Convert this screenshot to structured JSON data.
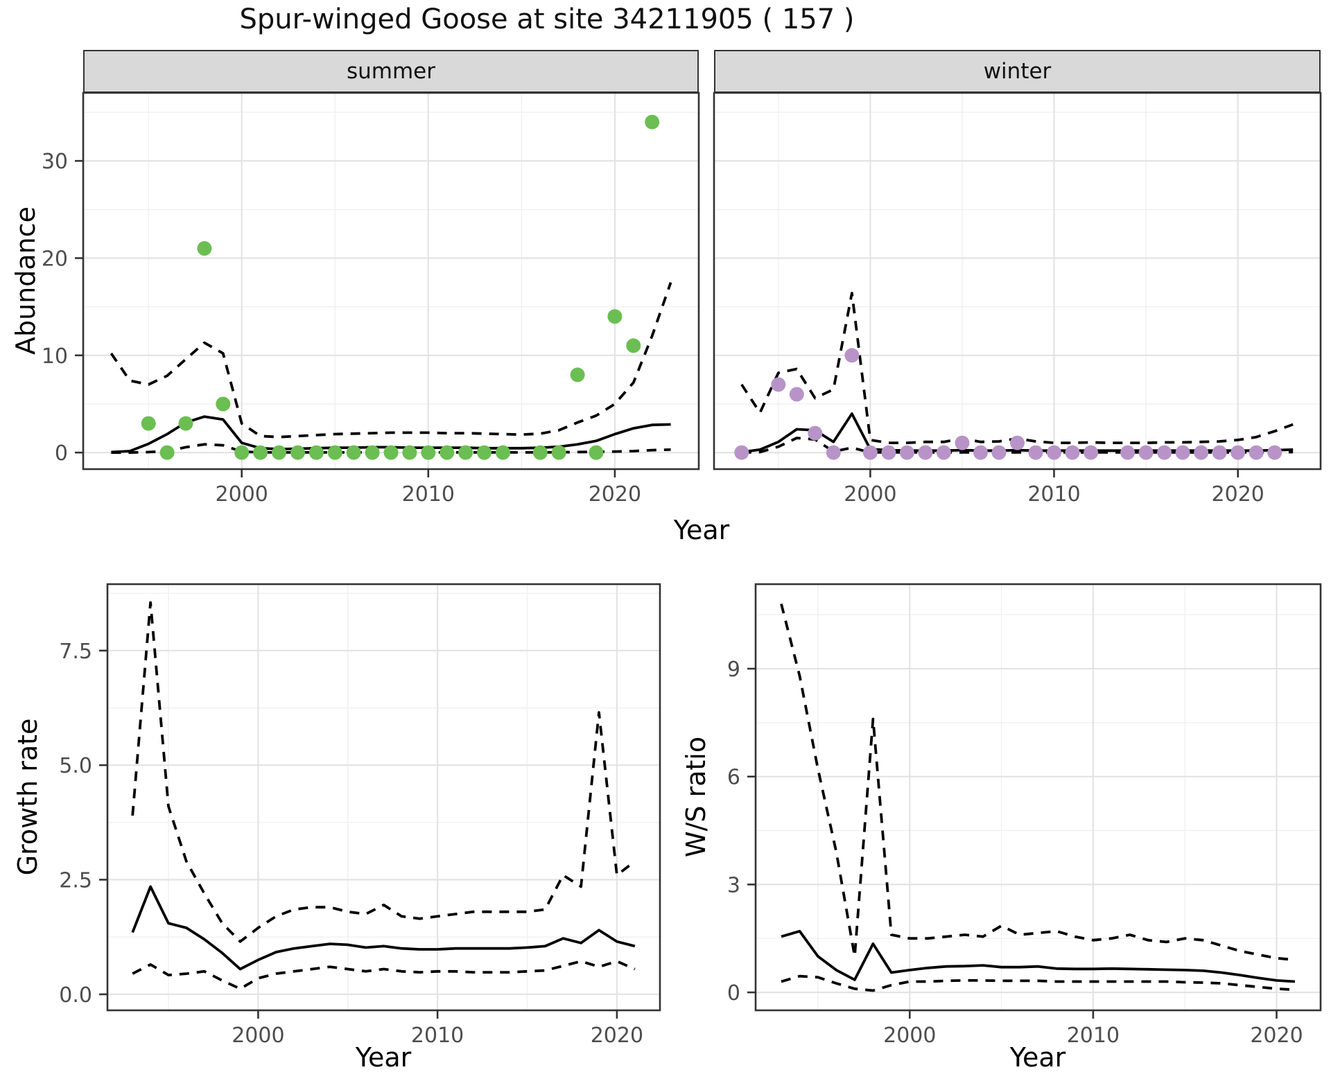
{
  "title": "Spur-winged Goose at site 34211905 ( 157 )",
  "axis": {
    "x_label": "Year"
  },
  "colors": {
    "summer_point": "#6bbe51",
    "winter_point": "#b893c8",
    "line": "#000000",
    "strip_bg": "#d9d9d9",
    "panel_border": "#333333",
    "grid_major": "#e3e3e3",
    "grid_minor": "#f0f0f0",
    "tick_text": "#4d4d4d",
    "tick_mark": "#333333"
  },
  "chart_data": [
    {
      "id": "summer",
      "type": "line",
      "facet_label": "summer",
      "xlabel": "Year",
      "ylabel": "Abundance",
      "xlim": [
        1991.5,
        2024.5
      ],
      "ylim": [
        -1.7,
        37
      ],
      "xticks": [
        2000,
        2010,
        2020
      ],
      "yticks": [
        0,
        10,
        20,
        30
      ],
      "ytick_labels": [
        "0",
        "10",
        "20",
        "30"
      ],
      "x_minor": [
        1995,
        2005,
        2015
      ],
      "y_minor": [
        5,
        15,
        25,
        35
      ],
      "show_y_labels": true,
      "grid": true,
      "series": [
        {
          "name": "median",
          "style": "solid",
          "x": [
            1993,
            1994,
            1995,
            1996,
            1997,
            1998,
            1999,
            2000,
            2001,
            2002,
            2003,
            2004,
            2005,
            2006,
            2007,
            2008,
            2009,
            2010,
            2011,
            2012,
            2013,
            2014,
            2015,
            2016,
            2017,
            2018,
            2019,
            2020,
            2021,
            2022,
            2023
          ],
          "y": [
            0.05,
            0.15,
            0.9,
            1.9,
            3.1,
            3.7,
            3.4,
            1.0,
            0.45,
            0.35,
            0.4,
            0.45,
            0.5,
            0.5,
            0.55,
            0.55,
            0.5,
            0.5,
            0.5,
            0.5,
            0.45,
            0.45,
            0.45,
            0.5,
            0.6,
            0.85,
            1.2,
            1.9,
            2.5,
            2.85,
            2.9
          ]
        },
        {
          "name": "lower_ci",
          "style": "dashed",
          "x": [
            1993,
            1994,
            1995,
            1996,
            1997,
            1998,
            1999,
            2000,
            2001,
            2002,
            2003,
            2004,
            2005,
            2006,
            2007,
            2008,
            2009,
            2010,
            2011,
            2012,
            2013,
            2014,
            2015,
            2016,
            2017,
            2018,
            2019,
            2020,
            2021,
            2022,
            2023
          ],
          "y": [
            0,
            0,
            0.05,
            0.15,
            0.55,
            0.85,
            0.75,
            0.1,
            0.02,
            0.02,
            0.02,
            0.02,
            0.02,
            0.02,
            0.02,
            0.02,
            0.02,
            0.02,
            0.02,
            0.02,
            0.02,
            0.02,
            0.02,
            0.02,
            0.03,
            0.05,
            0.08,
            0.1,
            0.15,
            0.25,
            0.3
          ]
        },
        {
          "name": "upper_ci",
          "style": "dashed",
          "x": [
            1993,
            1994,
            1995,
            1996,
            1997,
            1998,
            1999,
            2000,
            2001,
            2002,
            2003,
            2004,
            2005,
            2006,
            2007,
            2008,
            2009,
            2010,
            2011,
            2012,
            2013,
            2014,
            2015,
            2016,
            2017,
            2018,
            2019,
            2020,
            2021,
            2022,
            2023
          ],
          "y": [
            10.2,
            7.4,
            7.0,
            7.9,
            9.6,
            11.3,
            10.2,
            3.0,
            1.7,
            1.6,
            1.7,
            1.8,
            1.9,
            1.95,
            2.0,
            2.05,
            2.05,
            2.05,
            2.0,
            2.0,
            1.95,
            1.9,
            1.85,
            1.95,
            2.3,
            3.1,
            3.8,
            5.0,
            7.2,
            12.0,
            17.5
          ]
        }
      ],
      "points": {
        "name": "observed_abundance",
        "color_key": "summer_point",
        "x": [
          1995,
          1996,
          1997,
          1998,
          1999,
          2000,
          2001,
          2002,
          2003,
          2004,
          2005,
          2006,
          2007,
          2008,
          2009,
          2010,
          2011,
          2012,
          2013,
          2014,
          2016,
          2017,
          2018,
          2019,
          2020,
          2021,
          2022
        ],
        "y": [
          3,
          0,
          3,
          21,
          5,
          0,
          0,
          0,
          0,
          0,
          0,
          0,
          0,
          0,
          0,
          0,
          0,
          0,
          0,
          0,
          0,
          0,
          8,
          0,
          14,
          11,
          34
        ]
      }
    },
    {
      "id": "winter",
      "type": "line",
      "facet_label": "winter",
      "xlabel": "Year",
      "ylabel": "Abundance",
      "xlim": [
        1991.5,
        2024.5
      ],
      "ylim": [
        -1.7,
        37
      ],
      "xticks": [
        2000,
        2010,
        2020
      ],
      "yticks": [
        0,
        10,
        20,
        30
      ],
      "ytick_labels": [
        "0",
        "10",
        "20",
        "30"
      ],
      "x_minor": [
        1995,
        2005,
        2015
      ],
      "y_minor": [
        5,
        15,
        25,
        35
      ],
      "show_y_labels": false,
      "grid": true,
      "series": [
        {
          "name": "median",
          "style": "solid",
          "x": [
            1993,
            1994,
            1995,
            1996,
            1997,
            1998,
            1999,
            2000,
            2001,
            2002,
            2003,
            2004,
            2005,
            2006,
            2007,
            2008,
            2009,
            2010,
            2011,
            2012,
            2013,
            2014,
            2015,
            2016,
            2017,
            2018,
            2019,
            2020,
            2021,
            2022,
            2023
          ],
          "y": [
            0.05,
            0.3,
            1.1,
            2.4,
            2.3,
            1.1,
            4.0,
            0.35,
            0.25,
            0.2,
            0.2,
            0.2,
            0.25,
            0.2,
            0.2,
            0.25,
            0.2,
            0.2,
            0.2,
            0.2,
            0.2,
            0.2,
            0.2,
            0.2,
            0.2,
            0.2,
            0.2,
            0.2,
            0.2,
            0.25,
            0.3
          ]
        },
        {
          "name": "lower_ci",
          "style": "dashed",
          "x": [
            1993,
            1994,
            1995,
            1996,
            1997,
            1998,
            1999,
            2000,
            2001,
            2002,
            2003,
            2004,
            2005,
            2006,
            2007,
            2008,
            2009,
            2010,
            2011,
            2012,
            2013,
            2014,
            2015,
            2016,
            2017,
            2018,
            2019,
            2020,
            2021,
            2022,
            2023
          ],
          "y": [
            0,
            0.05,
            0.6,
            1.5,
            1.35,
            0.1,
            0.5,
            0.02,
            0.02,
            0.02,
            0.02,
            0.02,
            0.02,
            0.02,
            0.02,
            0.02,
            0.02,
            0.02,
            0.02,
            0.02,
            0.02,
            0.02,
            0.02,
            0.02,
            0.02,
            0.02,
            0.02,
            0.02,
            0.02,
            0.03,
            0.05
          ]
        },
        {
          "name": "upper_ci",
          "style": "dashed",
          "x": [
            1993,
            1994,
            1995,
            1996,
            1997,
            1998,
            1999,
            2000,
            2001,
            2002,
            2003,
            2004,
            2005,
            2006,
            2007,
            2008,
            2009,
            2010,
            2011,
            2012,
            2013,
            2014,
            2015,
            2016,
            2017,
            2018,
            2019,
            2020,
            2021,
            2022,
            2023
          ],
          "y": [
            7.0,
            4.1,
            8.2,
            8.6,
            5.6,
            6.5,
            16.4,
            1.3,
            1.0,
            1.0,
            1.1,
            1.1,
            1.45,
            1.1,
            1.15,
            1.45,
            1.15,
            1.0,
            1.0,
            1.05,
            1.0,
            1.0,
            1.0,
            1.05,
            1.05,
            1.1,
            1.15,
            1.3,
            1.6,
            2.2,
            2.9
          ]
        }
      ],
      "points": {
        "name": "observed_abundance",
        "color_key": "winter_point",
        "x": [
          1993,
          1995,
          1996,
          1997,
          1998,
          1999,
          2000,
          2001,
          2002,
          2003,
          2004,
          2005,
          2006,
          2007,
          2008,
          2009,
          2010,
          2011,
          2012,
          2014,
          2015,
          2016,
          2017,
          2018,
          2019,
          2020,
          2021,
          2022
        ],
        "y": [
          0,
          7,
          6,
          2,
          0,
          10,
          0,
          0,
          0,
          0,
          0,
          1,
          0,
          0,
          1,
          0,
          0,
          0,
          0,
          0,
          0,
          0,
          0,
          0,
          0,
          0,
          0,
          0
        ]
      }
    },
    {
      "id": "growth_rate",
      "type": "line",
      "facet_label": "",
      "xlabel": "Year",
      "ylabel": "Growth rate",
      "xlim": [
        1991.6,
        2022.4
      ],
      "ylim": [
        -0.35,
        8.95
      ],
      "xticks": [
        2000,
        2010,
        2020
      ],
      "yticks": [
        0,
        2.5,
        5,
        7.5
      ],
      "ytick_labels": [
        "0.0",
        "2.5",
        "5.0",
        "7.5"
      ],
      "x_minor": [
        1995,
        2005,
        2015
      ],
      "y_minor": [
        1.25,
        3.75,
        6.25,
        8.75
      ],
      "show_y_labels": true,
      "grid": true,
      "series": [
        {
          "name": "median",
          "style": "solid",
          "x": [
            1993,
            1994,
            1995,
            1996,
            1997,
            1998,
            1999,
            2000,
            2001,
            2002,
            2003,
            2004,
            2005,
            2006,
            2007,
            2008,
            2009,
            2010,
            2011,
            2012,
            2013,
            2014,
            2015,
            2016,
            2017,
            2018,
            2019,
            2020,
            2021
          ],
          "y": [
            1.35,
            2.35,
            1.55,
            1.45,
            1.2,
            0.9,
            0.55,
            0.75,
            0.92,
            1.0,
            1.05,
            1.1,
            1.08,
            1.02,
            1.05,
            1.0,
            0.98,
            0.98,
            1.0,
            1.0,
            1.0,
            1.0,
            1.02,
            1.05,
            1.22,
            1.12,
            1.4,
            1.15,
            1.05
          ]
        },
        {
          "name": "lower_ci",
          "style": "dashed",
          "x": [
            1993,
            1994,
            1995,
            1996,
            1997,
            1998,
            1999,
            2000,
            2001,
            2002,
            2003,
            2004,
            2005,
            2006,
            2007,
            2008,
            2009,
            2010,
            2011,
            2012,
            2013,
            2014,
            2015,
            2016,
            2017,
            2018,
            2019,
            2020,
            2021
          ],
          "y": [
            0.45,
            0.65,
            0.42,
            0.45,
            0.5,
            0.3,
            0.12,
            0.35,
            0.45,
            0.5,
            0.55,
            0.6,
            0.55,
            0.5,
            0.55,
            0.5,
            0.48,
            0.5,
            0.5,
            0.48,
            0.48,
            0.48,
            0.5,
            0.52,
            0.62,
            0.72,
            0.6,
            0.72,
            0.55
          ]
        },
        {
          "name": "upper_ci",
          "style": "dashed",
          "x": [
            1993,
            1994,
            1995,
            1996,
            1997,
            1998,
            1999,
            2000,
            2001,
            2002,
            2003,
            2004,
            2005,
            2006,
            2007,
            2008,
            2009,
            2010,
            2011,
            2012,
            2013,
            2014,
            2015,
            2016,
            2017,
            2018,
            2019,
            2020,
            2021
          ],
          "y": [
            3.9,
            8.55,
            4.1,
            2.9,
            2.2,
            1.55,
            1.15,
            1.45,
            1.7,
            1.85,
            1.9,
            1.9,
            1.8,
            1.75,
            1.95,
            1.7,
            1.65,
            1.7,
            1.75,
            1.8,
            1.8,
            1.8,
            1.8,
            1.85,
            2.6,
            2.35,
            6.15,
            2.6,
            2.9
          ]
        }
      ],
      "points": null
    },
    {
      "id": "ws_ratio",
      "type": "line",
      "facet_label": "",
      "xlabel": "Year",
      "ylabel": "W/S ratio",
      "xlim": [
        1991.6,
        2022.4
      ],
      "ylim": [
        -0.5,
        11.35
      ],
      "xticks": [
        2000,
        2010,
        2020
      ],
      "yticks": [
        0,
        3,
        6,
        9
      ],
      "ytick_labels": [
        "0",
        "3",
        "6",
        "9"
      ],
      "x_minor": [
        1995,
        2005,
        2015
      ],
      "y_minor": [
        1.5,
        4.5,
        7.5,
        10.5
      ],
      "show_y_labels": true,
      "grid": true,
      "series": [
        {
          "name": "median",
          "style": "solid",
          "x": [
            1993,
            1994,
            1995,
            1996,
            1997,
            1998,
            1999,
            2000,
            2001,
            2002,
            2003,
            2004,
            2005,
            2006,
            2007,
            2008,
            2009,
            2010,
            2011,
            2012,
            2013,
            2014,
            2015,
            2016,
            2017,
            2018,
            2019,
            2020,
            2021
          ],
          "y": [
            1.55,
            1.7,
            1.0,
            0.62,
            0.35,
            1.35,
            0.55,
            0.62,
            0.68,
            0.72,
            0.73,
            0.75,
            0.7,
            0.7,
            0.72,
            0.66,
            0.65,
            0.65,
            0.66,
            0.65,
            0.64,
            0.63,
            0.62,
            0.6,
            0.55,
            0.48,
            0.4,
            0.33,
            0.3
          ]
        },
        {
          "name": "lower_ci",
          "style": "dashed",
          "x": [
            1993,
            1994,
            1995,
            1996,
            1997,
            1998,
            1999,
            2000,
            2001,
            2002,
            2003,
            2004,
            2005,
            2006,
            2007,
            2008,
            2009,
            2010,
            2011,
            2012,
            2013,
            2014,
            2015,
            2016,
            2017,
            2018,
            2019,
            2020,
            2021
          ],
          "y": [
            0.3,
            0.45,
            0.42,
            0.25,
            0.1,
            0.05,
            0.2,
            0.3,
            0.3,
            0.32,
            0.33,
            0.33,
            0.32,
            0.32,
            0.32,
            0.3,
            0.3,
            0.3,
            0.3,
            0.3,
            0.3,
            0.3,
            0.28,
            0.27,
            0.25,
            0.2,
            0.15,
            0.1,
            0.07
          ]
        },
        {
          "name": "upper_ci",
          "style": "dashed",
          "x": [
            1993,
            1994,
            1995,
            1996,
            1997,
            1998,
            1999,
            2000,
            2001,
            2002,
            2003,
            2004,
            2005,
            2006,
            2007,
            2008,
            2009,
            2010,
            2011,
            2012,
            2013,
            2014,
            2015,
            2016,
            2017,
            2018,
            2019,
            2020,
            2021
          ],
          "y": [
            10.8,
            8.8,
            6.2,
            3.9,
            1.0,
            7.6,
            1.6,
            1.5,
            1.5,
            1.55,
            1.6,
            1.55,
            1.85,
            1.6,
            1.65,
            1.7,
            1.55,
            1.45,
            1.5,
            1.6,
            1.45,
            1.4,
            1.5,
            1.45,
            1.3,
            1.15,
            1.05,
            0.95,
            0.9
          ]
        }
      ],
      "points": null
    }
  ]
}
